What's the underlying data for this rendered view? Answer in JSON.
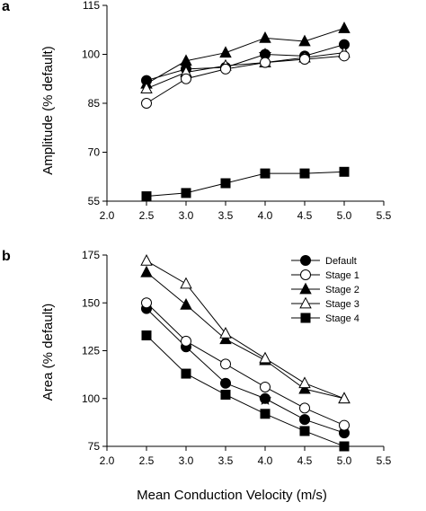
{
  "chart_data": [
    {
      "panel_label": "a",
      "type": "line",
      "ylabel": "Amplitude (% default)",
      "xlabel": "",
      "xlim": [
        2.0,
        5.5
      ],
      "ylim": [
        55,
        115
      ],
      "x_ticks": [
        "2.0",
        "2.5",
        "3.0",
        "3.5",
        "4.0",
        "4.5",
        "5.0",
        "5.5"
      ],
      "y_ticks": [
        "55",
        "70",
        "85",
        "100",
        "115"
      ],
      "x": [
        2.5,
        3.0,
        3.5,
        4.0,
        4.5,
        5.0
      ],
      "series": [
        {
          "name": "Default",
          "marker": "circle-filled",
          "values": [
            92,
            95.5,
            96,
            100,
            99.5,
            103
          ]
        },
        {
          "name": "Stage 1",
          "marker": "circle-open",
          "values": [
            85,
            92.5,
            95.5,
            97.5,
            98.5,
            99.5
          ]
        },
        {
          "name": "Stage 2",
          "marker": "triangle-filled",
          "values": [
            91,
            98,
            100.5,
            105,
            104,
            108
          ]
        },
        {
          "name": "Stage 3",
          "marker": "triangle-open",
          "values": [
            89.5,
            94.5,
            96.5,
            97.5,
            99,
            100.5
          ]
        },
        {
          "name": "Stage 4",
          "marker": "square-filled",
          "values": [
            56.5,
            57.5,
            60.5,
            63.5,
            63.5,
            64
          ]
        }
      ],
      "star_point": {
        "x": 4.0,
        "y": 100
      }
    },
    {
      "panel_label": "b",
      "type": "line",
      "ylabel": "Area (% default)",
      "xlabel": "Mean Conduction Velocity (m/s)",
      "xlim": [
        2.0,
        5.5
      ],
      "ylim": [
        75,
        175
      ],
      "x_ticks": [
        "2.0",
        "2.5",
        "3.0",
        "3.5",
        "4.0",
        "4.5",
        "5.0",
        "5.5"
      ],
      "y_ticks": [
        "75",
        "100",
        "125",
        "150",
        "175"
      ],
      "x": [
        2.5,
        3.0,
        3.5,
        4.0,
        4.5,
        5.0
      ],
      "series": [
        {
          "name": "Default",
          "marker": "circle-filled",
          "values": [
            147,
            127,
            108,
            100,
            89,
            82
          ]
        },
        {
          "name": "Stage 1",
          "marker": "circle-open",
          "values": [
            150,
            130,
            118,
            106,
            95,
            86
          ]
        },
        {
          "name": "Stage 2",
          "marker": "triangle-filled",
          "values": [
            166,
            149,
            131,
            120,
            105,
            100
          ]
        },
        {
          "name": "Stage 3",
          "marker": "triangle-open",
          "values": [
            172,
            160,
            134,
            121,
            108,
            100
          ]
        },
        {
          "name": "Stage 4",
          "marker": "square-filled",
          "values": [
            133,
            113,
            102,
            92,
            83,
            75
          ]
        }
      ],
      "star_point": {
        "x": 4.0,
        "y": 99.5
      },
      "legend": [
        "Default",
        "Stage 1",
        "Stage 2",
        "Stage 3",
        "Stage 4"
      ],
      "legend_position": "top-right"
    }
  ]
}
